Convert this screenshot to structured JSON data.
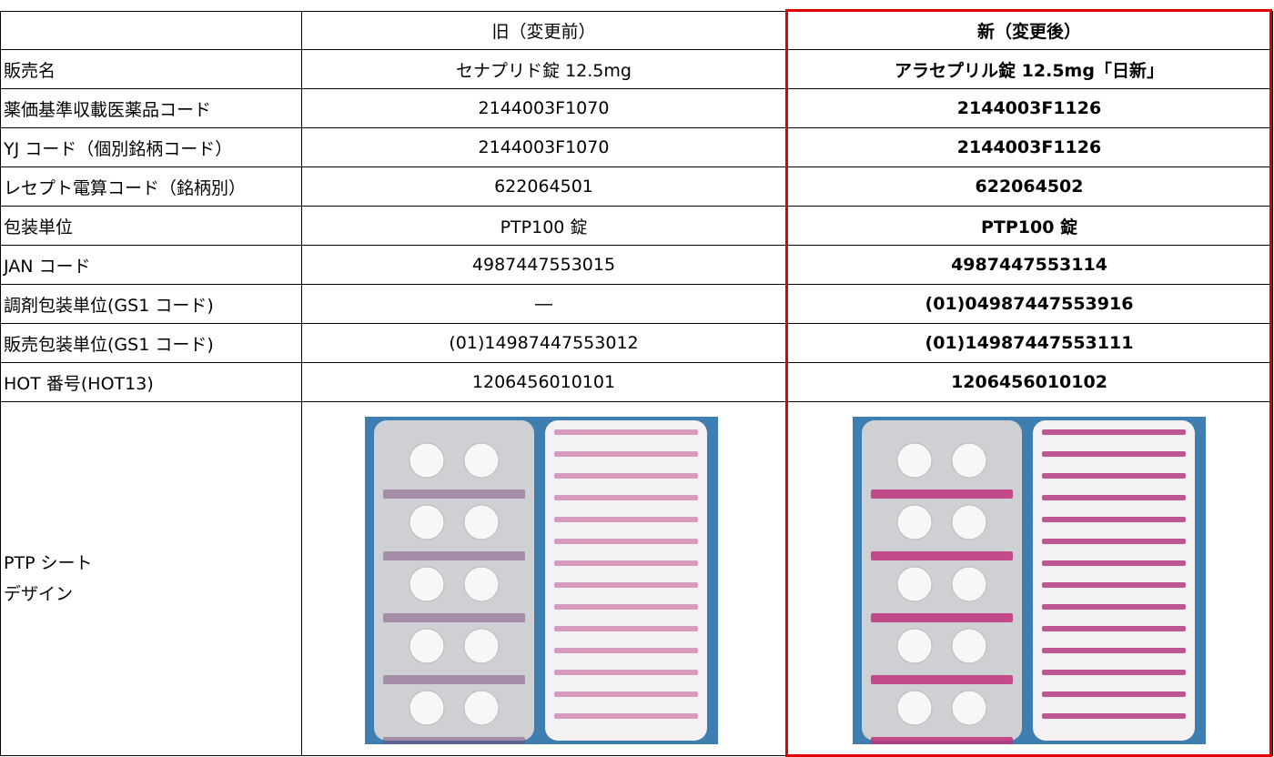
{
  "header": {
    "old": "旧（変更前）",
    "new": "新（変更後）"
  },
  "rows": [
    [
      "販売名",
      "セナプリド錠 12.5mg",
      "アラセプリル錠 12.5mg「日新」"
    ],
    [
      "薬価基準収載医薬品コード",
      "2144003F1070",
      "2144003F1126"
    ],
    [
      "YJ コード（個別銘柄コード）",
      "2144003F1070",
      "2144003F1126"
    ],
    [
      "レセプト電算コード（銘柄別）",
      "622064501",
      "622064502"
    ],
    [
      "包装単位",
      "PTP100 錠",
      "PTP100 錠"
    ],
    [
      "JAN コード",
      "4987447553015",
      "4987447553114"
    ],
    [
      "調剤包装単位(GS1 コード)",
      "―",
      "(01)04987447553916"
    ],
    [
      "販売包装単位(GS1 コード)",
      "(01)14987447553012",
      "(01)14987447553111"
    ],
    [
      "HOT 番号(HOT13)",
      "1206456010101",
      "1206456010102"
    ]
  ],
  "design_row": {
    "label": [
      "PTP シート",
      "デザイン"
    ]
  }
}
